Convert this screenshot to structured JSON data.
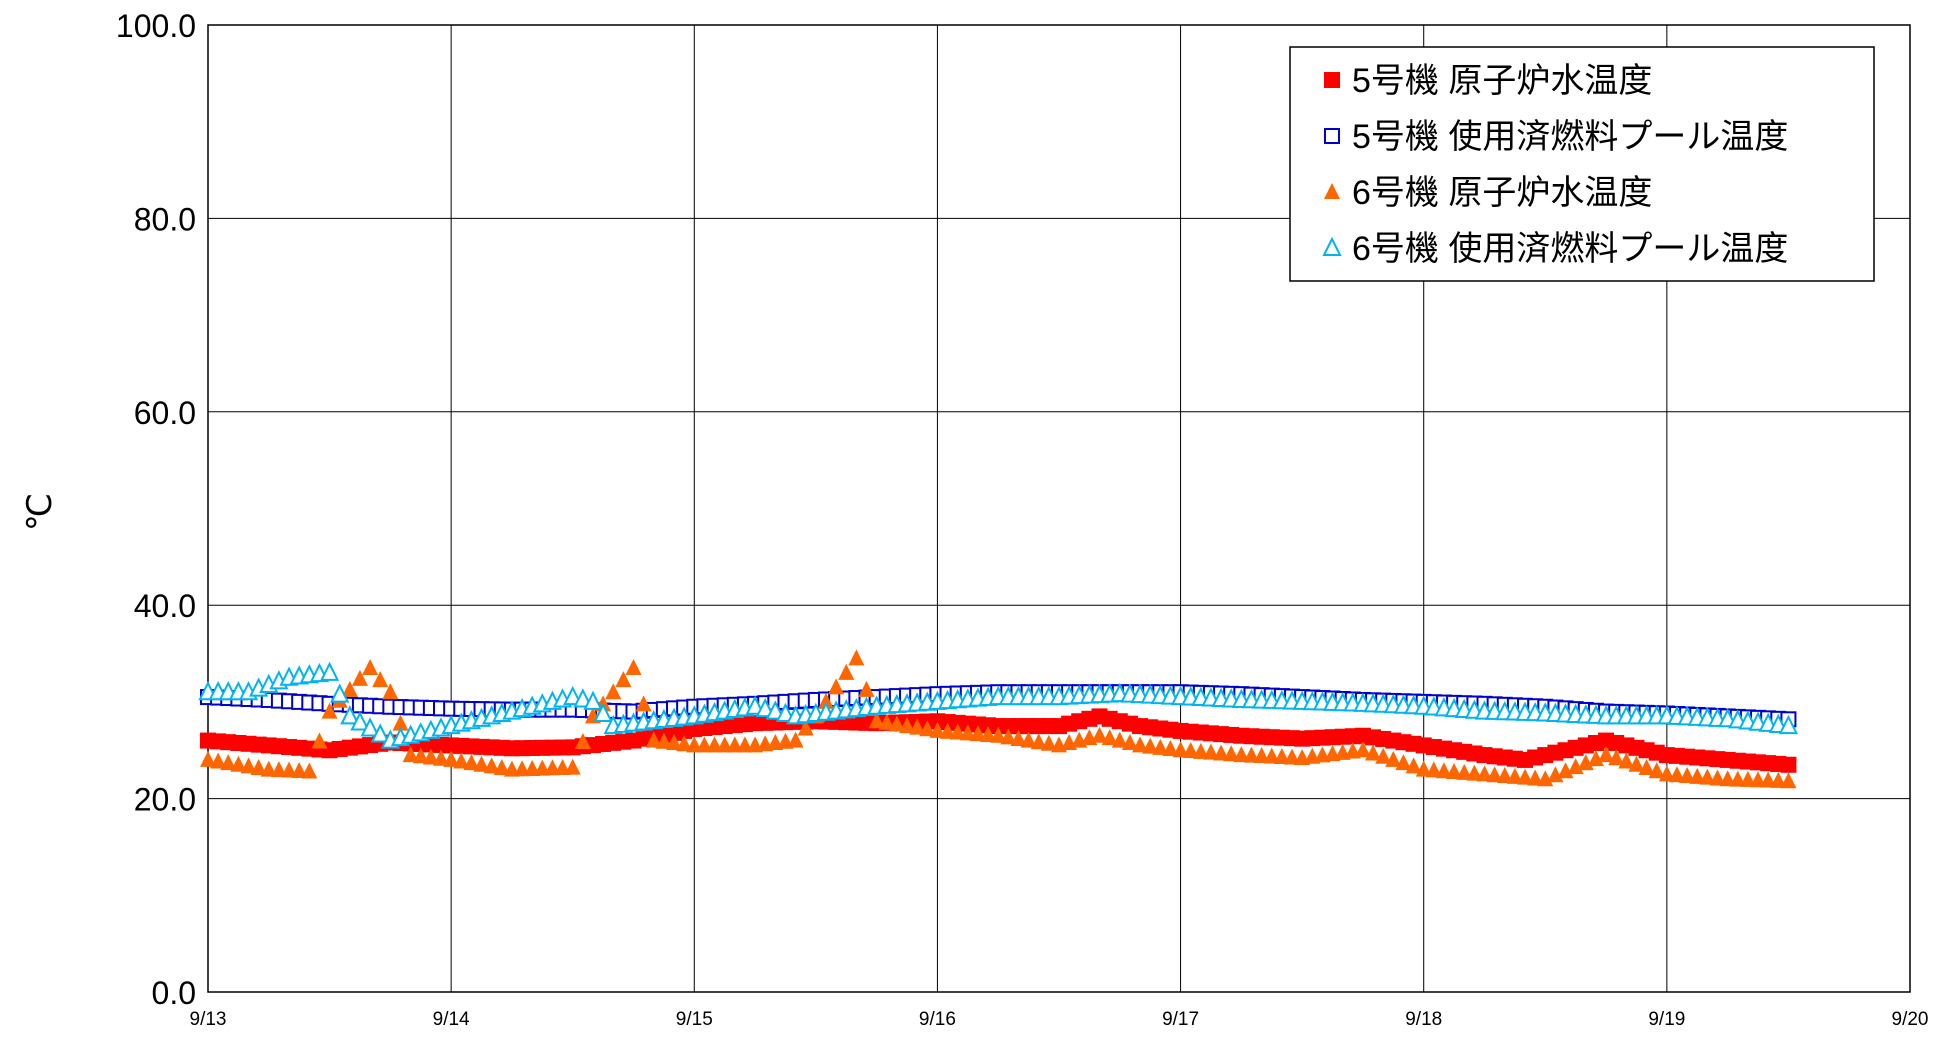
{
  "chart_data": {
    "type": "scatter",
    "title": "",
    "xlabel": "",
    "ylabel": "℃",
    "xlim": [
      "9/13",
      "9/20"
    ],
    "ylim": [
      0,
      100
    ],
    "x_tick_labels": [
      "9/13",
      "9/14",
      "9/15",
      "9/16",
      "9/17",
      "9/18",
      "9/19",
      "9/20"
    ],
    "y_tick_labels": [
      "0.0",
      "20.0",
      "40.0",
      "60.0",
      "80.0",
      "100.0"
    ],
    "grid": true,
    "legend_position": "top-right",
    "colors": {
      "unit5_reactor": "#ff0000",
      "unit5_pool": "#0000cc",
      "unit6_reactor": "#ff6600",
      "unit6_pool": "#00b4f0"
    },
    "series": [
      {
        "name": "5号機 原子炉水温度",
        "marker": "filled-square",
        "color": "#ff0000",
        "points": [
          [
            "9/13 00:00",
            26.0
          ],
          [
            "9/13 06:00",
            25.5
          ],
          [
            "9/13 12:00",
            25.0
          ],
          [
            "9/13 18:00",
            25.8
          ],
          [
            "9/14 00:00",
            25.5
          ],
          [
            "9/14 06:00",
            25.2
          ],
          [
            "9/14 12:00",
            25.3
          ],
          [
            "9/14 18:00",
            26.0
          ],
          [
            "9/15 00:00",
            27.2
          ],
          [
            "9/15 06:00",
            27.8
          ],
          [
            "9/15 12:00",
            28.0
          ],
          [
            "9/15 18:00",
            27.8
          ],
          [
            "9/16 00:00",
            28.0
          ],
          [
            "9/16 06:00",
            27.5
          ],
          [
            "9/16 12:00",
            27.5
          ],
          [
            "9/16 16:00",
            28.5
          ],
          [
            "9/16 20:00",
            27.5
          ],
          [
            "9/17 00:00",
            27.0
          ],
          [
            "9/17 06:00",
            26.5
          ],
          [
            "9/17 12:00",
            26.2
          ],
          [
            "9/17 18:00",
            26.5
          ],
          [
            "9/18 00:00",
            25.5
          ],
          [
            "9/18 06:00",
            24.5
          ],
          [
            "9/18 10:00",
            24.0
          ],
          [
            "9/18 18:00",
            26.0
          ],
          [
            "9/19 00:00",
            24.5
          ],
          [
            "9/19 06:00",
            24.0
          ],
          [
            "9/19 12:00",
            23.5
          ]
        ]
      },
      {
        "name": "5号機 使用済燃料プール温度",
        "marker": "open-square",
        "color": "#0000cc",
        "points": [
          [
            "9/13 00:00",
            30.5
          ],
          [
            "9/13 06:00",
            30.2
          ],
          [
            "9/13 12:00",
            29.8
          ],
          [
            "9/13 18:00",
            29.5
          ],
          [
            "9/14 00:00",
            29.3
          ],
          [
            "9/14 06:00",
            29.2
          ],
          [
            "9/14 12:00",
            29.2
          ],
          [
            "9/14 18:00",
            29.0
          ],
          [
            "9/15 00:00",
            29.5
          ],
          [
            "9/15 06:00",
            29.8
          ],
          [
            "9/15 12:00",
            30.2
          ],
          [
            "9/15 18:00",
            30.5
          ],
          [
            "9/16 00:00",
            30.8
          ],
          [
            "9/16 06:00",
            31.0
          ],
          [
            "9/16 12:00",
            31.0
          ],
          [
            "9/16 18:00",
            31.0
          ],
          [
            "9/17 00:00",
            31.0
          ],
          [
            "9/17 06:00",
            30.8
          ],
          [
            "9/17 12:00",
            30.5
          ],
          [
            "9/17 18:00",
            30.2
          ],
          [
            "9/18 00:00",
            30.0
          ],
          [
            "9/18 06:00",
            29.8
          ],
          [
            "9/18 12:00",
            29.5
          ],
          [
            "9/18 18:00",
            29.0
          ],
          [
            "9/19 00:00",
            28.8
          ],
          [
            "9/19 06:00",
            28.5
          ],
          [
            "9/19 12:00",
            28.2
          ]
        ]
      },
      {
        "name": "6号機 原子炉水温度",
        "marker": "filled-triangle",
        "color": "#ff6600",
        "points": [
          [
            "9/13 00:00",
            24.0
          ],
          [
            "9/13 06:00",
            23.0
          ],
          [
            "9/13 10:00",
            22.8
          ],
          [
            "9/13 12:00",
            29.0
          ],
          [
            "9/13 16:00",
            33.5
          ],
          [
            "9/13 18:00",
            31.0
          ],
          [
            "9/13 20:00",
            24.5
          ],
          [
            "9/14 00:00",
            24.0
          ],
          [
            "9/14 06:00",
            23.0
          ],
          [
            "9/14 12:00",
            23.2
          ],
          [
            "9/14 14:00",
            28.5
          ],
          [
            "9/14 18:00",
            33.5
          ],
          [
            "9/14 20:00",
            26.0
          ],
          [
            "9/15 00:00",
            25.5
          ],
          [
            "9/15 06:00",
            25.5
          ],
          [
            "9/15 10:00",
            26.0
          ],
          [
            "9/15 12:00",
            28.5
          ],
          [
            "9/15 16:00",
            34.5
          ],
          [
            "9/15 18:00",
            28.0
          ],
          [
            "9/16 00:00",
            27.0
          ],
          [
            "9/16 06:00",
            26.5
          ],
          [
            "9/16 12:00",
            25.5
          ],
          [
            "9/16 16:00",
            26.5
          ],
          [
            "9/16 20:00",
            25.5
          ],
          [
            "9/17 00:00",
            25.0
          ],
          [
            "9/17 06:00",
            24.5
          ],
          [
            "9/17 12:00",
            24.2
          ],
          [
            "9/17 18:00",
            25.0
          ],
          [
            "9/18 00:00",
            23.0
          ],
          [
            "9/18 06:00",
            22.5
          ],
          [
            "9/18 12:00",
            22.0
          ],
          [
            "9/18 18:00",
            24.5
          ],
          [
            "9/19 00:00",
            22.5
          ],
          [
            "9/19 06:00",
            22.0
          ],
          [
            "9/19 12:00",
            21.8
          ]
        ]
      },
      {
        "name": "6号機 使用済燃料プール温度",
        "marker": "open-triangle",
        "color": "#00b4f0",
        "points": [
          [
            "9/13 00:00",
            31.0
          ],
          [
            "9/13 04:00",
            31.0
          ],
          [
            "9/13 08:00",
            32.5
          ],
          [
            "9/13 12:00",
            33.0
          ],
          [
            "9/13 14:00",
            28.5
          ],
          [
            "9/13 18:00",
            26.0
          ],
          [
            "9/14 00:00",
            27.5
          ],
          [
            "9/14 06:00",
            29.0
          ],
          [
            "9/14 12:00",
            30.5
          ],
          [
            "9/14 14:00",
            30.0
          ],
          [
            "9/14 16:00",
            27.5
          ],
          [
            "9/15 00:00",
            28.5
          ],
          [
            "9/15 06:00",
            29.5
          ],
          [
            "9/15 10:00",
            28.5
          ],
          [
            "9/15 18:00",
            29.5
          ],
          [
            "9/16 00:00",
            30.0
          ],
          [
            "9/16 06:00",
            30.5
          ],
          [
            "9/16 12:00",
            30.5
          ],
          [
            "9/16 18:00",
            30.8
          ],
          [
            "9/17 00:00",
            30.5
          ],
          [
            "9/17 06:00",
            30.2
          ],
          [
            "9/17 12:00",
            30.0
          ],
          [
            "9/17 18:00",
            29.8
          ],
          [
            "9/18 00:00",
            29.5
          ],
          [
            "9/18 06:00",
            29.0
          ],
          [
            "9/18 12:00",
            28.8
          ],
          [
            "9/18 18:00",
            28.5
          ],
          [
            "9/19 00:00",
            28.5
          ],
          [
            "9/19 06:00",
            28.2
          ],
          [
            "9/19 12:00",
            27.5
          ]
        ]
      }
    ]
  }
}
